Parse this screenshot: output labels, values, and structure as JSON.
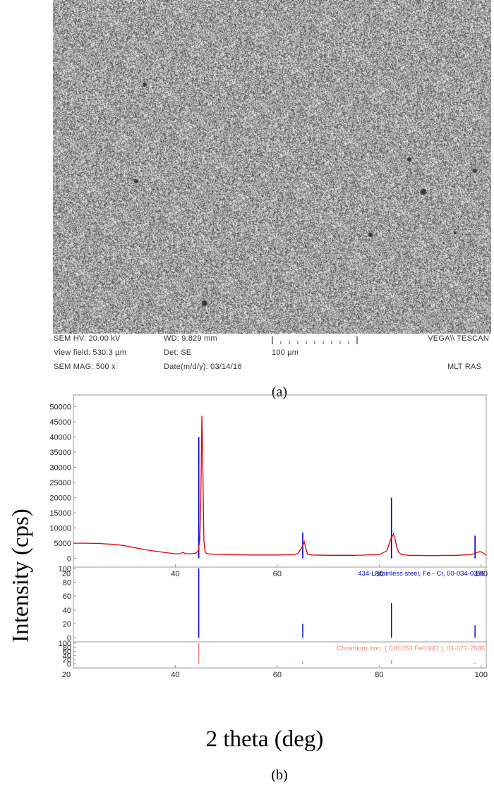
{
  "sem": {
    "hv": "SEM HV: 20.00 kV",
    "wd": "WD: 9.829 mm",
    "brand": "VEGA\\\\ TESCAN",
    "view_field": "View field: 530.3 µm",
    "det": "Det: SE",
    "scale": "100 µm",
    "mag": "SEM MAG: 500 x",
    "date": "Date(m/d/y): 03/14/16",
    "lab": "MLT RAS"
  },
  "captions": {
    "a": "(a)",
    "b": "(b)"
  },
  "axis_labels": {
    "y": "Intensity (cps)",
    "x": "2 theta (deg)"
  },
  "chart_data": [
    {
      "type": "line",
      "xlim": [
        20,
        101
      ],
      "ylim": [
        -1500,
        52000
      ],
      "yticks": [
        0,
        5000,
        10000,
        15000,
        20000,
        25000,
        30000,
        35000,
        40000,
        45000,
        50000
      ],
      "xticks": [
        20,
        40,
        60,
        80,
        100
      ],
      "series": [
        {
          "color": "#e00000",
          "x": [
            20,
            22,
            25,
            28,
            30,
            32,
            35,
            38,
            40,
            41,
            41.5,
            42,
            43,
            44,
            44.5,
            44.8,
            45.0,
            45.2,
            45.4,
            45.6,
            45.8,
            46.0,
            46.3,
            47,
            48,
            50,
            55,
            60,
            63,
            64,
            64.8,
            65.3,
            65.6,
            65.9,
            66.3,
            67,
            70,
            75,
            80,
            81.5,
            82.3,
            82.8,
            83.1,
            83.4,
            83.8,
            84.5,
            86,
            90,
            95,
            98,
            99,
            99.7,
            100.2,
            100.8,
            101
          ],
          "y": [
            5000,
            5000,
            4900,
            4600,
            4200,
            3500,
            2600,
            1900,
            1500,
            1500,
            2000,
            1500,
            1500,
            1700,
            2500,
            6000,
            20000,
            47000,
            30000,
            6000,
            2500,
            1800,
            1500,
            1400,
            1300,
            1200,
            1100,
            1100,
            1200,
            1500,
            3500,
            5500,
            3500,
            1500,
            1200,
            1100,
            1000,
            1000,
            1200,
            2500,
            6500,
            8000,
            6500,
            4000,
            2000,
            1200,
            1000,
            900,
            1000,
            1200,
            1800,
            2200,
            2000,
            1200,
            900
          ]
        }
      ],
      "sticks": {
        "color": "#0000dd",
        "x": [
          44.6,
          65.0,
          82.4,
          98.8
        ],
        "y": [
          40000,
          8500,
          20000,
          7500
        ]
      },
      "legend": ""
    },
    {
      "type": "bar",
      "xlim": [
        20,
        101
      ],
      "ylim": [
        0,
        100
      ],
      "yticks": [
        0,
        20,
        40,
        60,
        80,
        100
      ],
      "color": "#0000dd",
      "label": "434-L stainless steel, Fe - Cr, 00-034-0396",
      "x": [
        44.6,
        65.0,
        82.4,
        98.8
      ],
      "y": [
        100,
        20,
        50,
        18
      ]
    },
    {
      "type": "bar",
      "xlim": [
        20,
        101
      ],
      "ylim": [
        0,
        100
      ],
      "yticks": [
        0,
        20,
        40,
        60,
        80,
        100
      ],
      "xticks": [
        20,
        40,
        60,
        80,
        100
      ],
      "color": "#ff7777",
      "label": "Chromium Iron, ( Cr0.053 Fe0.947 ), 01-071-7536",
      "x": [
        44.6,
        65.0,
        82.4,
        98.8
      ],
      "y": [
        100,
        12,
        18,
        5
      ]
    }
  ]
}
